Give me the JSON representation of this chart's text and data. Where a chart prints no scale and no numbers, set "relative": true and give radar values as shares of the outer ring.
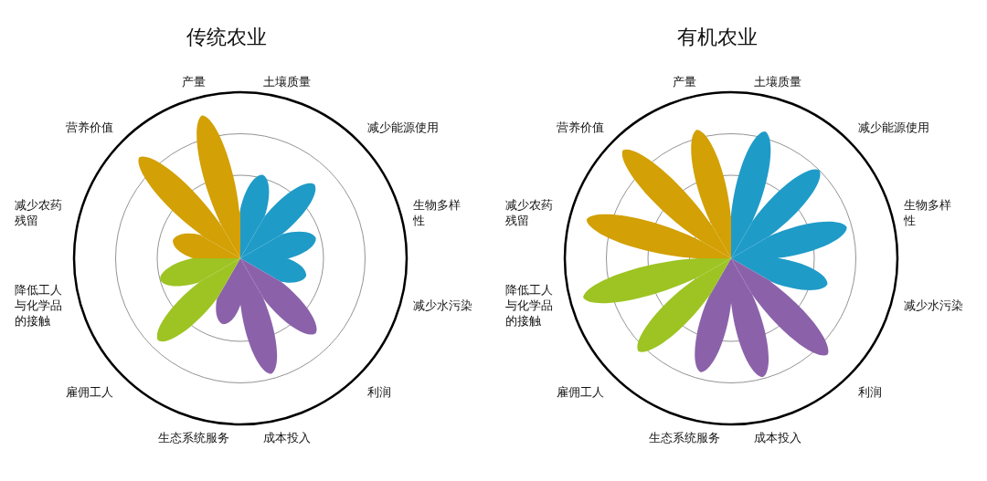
{
  "chart_data": [
    {
      "type": "radar",
      "title": "传统农业",
      "relative": true,
      "grid": true,
      "categories": [
        "土壤质量",
        "减少能源使用",
        "生物多样性",
        "减少水污染",
        "利润",
        "成本投入",
        "生态系统服务",
        "雇佣工人",
        "降低工人与化学品的接触",
        "减少农药残留",
        "营养价值",
        "产量"
      ],
      "series": [
        {
          "values": [
            0.52,
            0.63,
            0.47,
            0.41,
            0.64,
            0.72,
            0.41,
            0.7,
            0.5,
            0.42,
            0.86,
            0.89
          ],
          "colors": [
            "#1f9bc8",
            "#1f9bc8",
            "#1f9bc8",
            "#1f9bc8",
            "#8b62aa",
            "#8b62aa",
            "#8b62aa",
            "#9dc423",
            "#9dc423",
            "#d3a005",
            "#d3a005",
            "#d3a005"
          ]
        }
      ]
    },
    {
      "type": "radar",
      "title": "有机农业",
      "relative": true,
      "grid": true,
      "categories": [
        "土壤质量",
        "减少能源使用",
        "生物多样性",
        "减少水污染",
        "利润",
        "成本投入",
        "生态系统服务",
        "雇佣工人",
        "降低工人与化学品的接触",
        "减少农药残留",
        "营养价值",
        "产量"
      ],
      "series": [
        {
          "values": [
            0.79,
            0.75,
            0.72,
            0.6,
            0.82,
            0.74,
            0.71,
            0.79,
            0.92,
            0.9,
            0.92,
            0.8
          ],
          "colors": [
            "#1f9bc8",
            "#1f9bc8",
            "#1f9bc8",
            "#1f9bc8",
            "#8b62aa",
            "#8b62aa",
            "#8b62aa",
            "#9dc423",
            "#9dc423",
            "#d3a005",
            "#d3a005",
            "#d3a005"
          ]
        }
      ]
    }
  ]
}
